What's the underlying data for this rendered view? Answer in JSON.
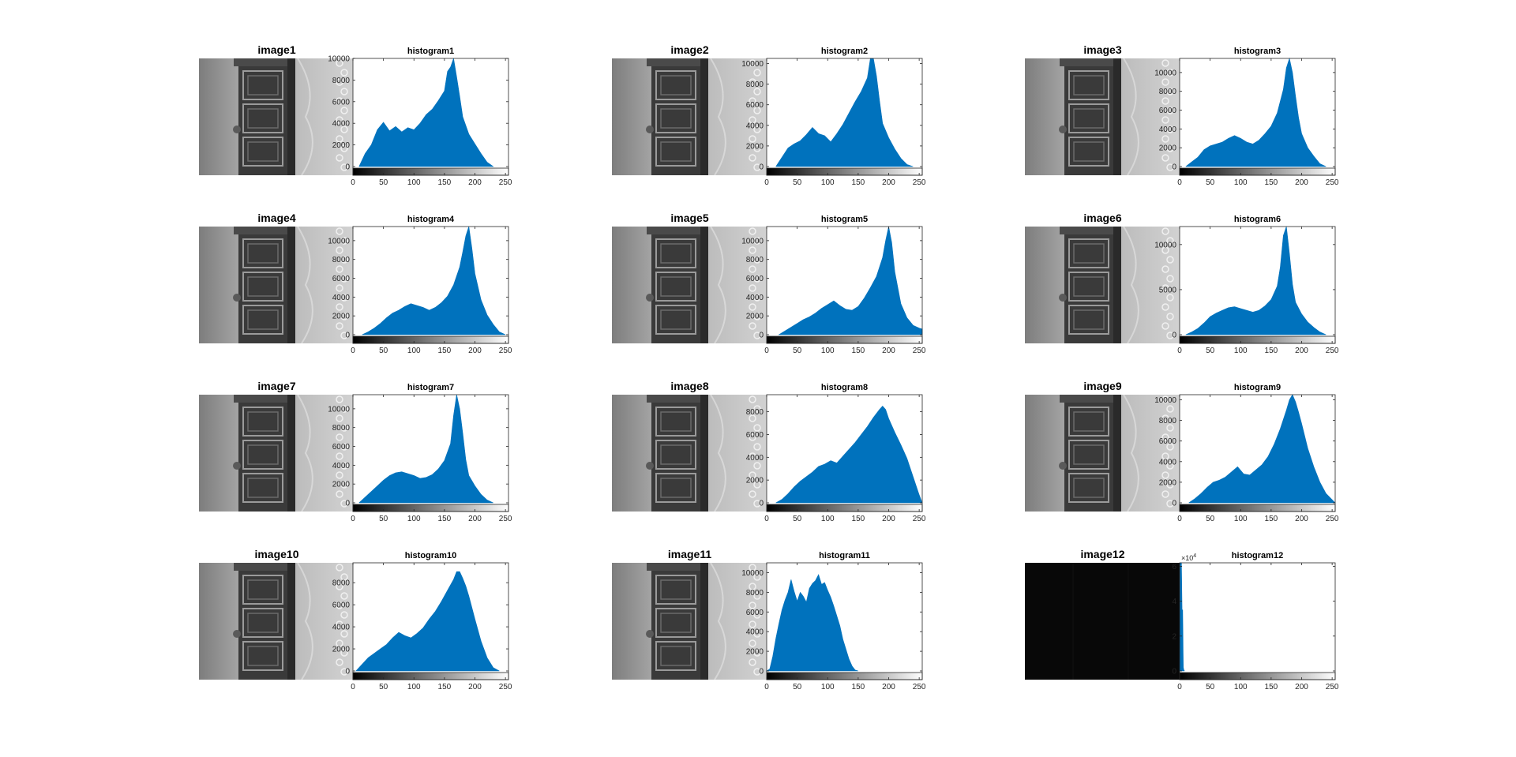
{
  "figure": {
    "panels": [
      {
        "image_title": "image1",
        "hist_title": "histogram1",
        "dark": false
      },
      {
        "image_title": "image2",
        "hist_title": "histogram2",
        "dark": false
      },
      {
        "image_title": "image3",
        "hist_title": "histogram3",
        "dark": false
      },
      {
        "image_title": "image4",
        "hist_title": "histogram4",
        "dark": false
      },
      {
        "image_title": "image5",
        "hist_title": "histogram5",
        "dark": false
      },
      {
        "image_title": "image6",
        "hist_title": "histogram6",
        "dark": false
      },
      {
        "image_title": "image7",
        "hist_title": "histogram7",
        "dark": false
      },
      {
        "image_title": "image8",
        "hist_title": "histogram8",
        "dark": false
      },
      {
        "image_title": "image9",
        "hist_title": "histogram9",
        "dark": false
      },
      {
        "image_title": "image10",
        "hist_title": "histogram10",
        "dark": false
      },
      {
        "image_title": "image11",
        "hist_title": "histogram11",
        "dark": false
      },
      {
        "image_title": "image12",
        "hist_title": "histogram12",
        "dark": true
      }
    ]
  },
  "colors": {
    "bar": "#0072BD",
    "axis": "#262626",
    "background": "#ffffff"
  },
  "chart_data": [
    {
      "type": "area",
      "title": "histogram1",
      "xlim": [
        0,
        255
      ],
      "ylim": [
        0,
        10000
      ],
      "xticks": [
        0,
        50,
        100,
        150,
        200,
        250
      ],
      "yticks": [
        0,
        2000,
        4000,
        6000,
        8000,
        10000
      ],
      "ytick_labels": [
        "0",
        "2000",
        "4000",
        "6000",
        "8000",
        "10000"
      ],
      "x": [
        10,
        20,
        30,
        40,
        50,
        60,
        70,
        80,
        90,
        100,
        110,
        120,
        130,
        140,
        150,
        155,
        160,
        165,
        170,
        175,
        180,
        190,
        200,
        210,
        220,
        230
      ],
      "values": [
        0,
        1200,
        2000,
        3400,
        4100,
        3300,
        3700,
        3200,
        3600,
        3400,
        4000,
        4800,
        5300,
        6100,
        7000,
        8800,
        9200,
        10000,
        8300,
        6500,
        4600,
        3000,
        2100,
        1200,
        400,
        0
      ]
    },
    {
      "type": "area",
      "title": "histogram2",
      "xlim": [
        0,
        255
      ],
      "ylim": [
        0,
        10500
      ],
      "xticks": [
        0,
        50,
        100,
        150,
        200,
        250
      ],
      "yticks": [
        0,
        2000,
        4000,
        6000,
        8000,
        10000
      ],
      "ytick_labels": [
        "0",
        "2000",
        "4000",
        "6000",
        "8000",
        "10000"
      ],
      "x": [
        15,
        25,
        35,
        45,
        55,
        65,
        75,
        85,
        95,
        105,
        115,
        125,
        135,
        145,
        155,
        165,
        170,
        175,
        180,
        185,
        190,
        200,
        210,
        220,
        230,
        240
      ],
      "values": [
        0,
        900,
        1800,
        2200,
        2500,
        3100,
        3800,
        3200,
        3000,
        2400,
        3200,
        4100,
        5200,
        6300,
        7300,
        8600,
        10500,
        10500,
        8800,
        6400,
        4200,
        2800,
        1700,
        800,
        200,
        0
      ]
    },
    {
      "type": "area",
      "title": "histogram3",
      "xlim": [
        0,
        255
      ],
      "ylim": [
        0,
        11500
      ],
      "xticks": [
        0,
        50,
        100,
        150,
        200,
        250
      ],
      "yticks": [
        0,
        2000,
        4000,
        6000,
        8000,
        10000
      ],
      "ytick_labels": [
        "0",
        "2000",
        "4000",
        "6000",
        "8000",
        "10000"
      ],
      "x": [
        10,
        20,
        30,
        40,
        50,
        60,
        70,
        80,
        90,
        100,
        110,
        120,
        130,
        140,
        150,
        160,
        170,
        175,
        180,
        185,
        190,
        195,
        200,
        210,
        220,
        230,
        240
      ],
      "values": [
        0,
        500,
        1000,
        1800,
        2200,
        2400,
        2600,
        3000,
        3300,
        3000,
        2600,
        2400,
        2800,
        3500,
        4300,
        5700,
        8200,
        10500,
        11500,
        10000,
        7500,
        5200,
        3500,
        2000,
        1100,
        300,
        0
      ]
    },
    {
      "type": "area",
      "title": "histogram4",
      "xlim": [
        0,
        255
      ],
      "ylim": [
        0,
        11500
      ],
      "xticks": [
        0,
        50,
        100,
        150,
        200,
        250
      ],
      "yticks": [
        0,
        2000,
        4000,
        6000,
        8000,
        10000
      ],
      "ytick_labels": [
        "0",
        "2000",
        "4000",
        "6000",
        "8000",
        "10000"
      ],
      "x": [
        15,
        25,
        35,
        45,
        55,
        65,
        75,
        85,
        95,
        105,
        115,
        125,
        135,
        145,
        155,
        165,
        175,
        180,
        185,
        190,
        195,
        200,
        210,
        220,
        230,
        240,
        250
      ],
      "values": [
        0,
        300,
        700,
        1200,
        1800,
        2300,
        2600,
        3000,
        3300,
        3100,
        2900,
        2600,
        2900,
        3400,
        4100,
        5300,
        7200,
        8800,
        10500,
        11500,
        9200,
        6500,
        3700,
        2100,
        1100,
        300,
        0
      ]
    },
    {
      "type": "area",
      "title": "histogram5",
      "xlim": [
        0,
        255
      ],
      "ylim": [
        0,
        11500
      ],
      "xticks": [
        0,
        50,
        100,
        150,
        200,
        250
      ],
      "yticks": [
        0,
        2000,
        4000,
        6000,
        8000,
        10000
      ],
      "ytick_labels": [
        "0",
        "2000",
        "4000",
        "6000",
        "8000",
        "10000"
      ],
      "x": [
        20,
        30,
        40,
        50,
        60,
        70,
        80,
        90,
        100,
        110,
        120,
        130,
        140,
        150,
        160,
        170,
        180,
        190,
        195,
        200,
        205,
        210,
        220,
        230,
        240,
        250,
        255
      ],
      "values": [
        0,
        400,
        800,
        1200,
        1600,
        1900,
        2300,
        2800,
        3200,
        3600,
        3100,
        2700,
        2600,
        3000,
        3900,
        5000,
        6200,
        8200,
        10000,
        11500,
        9800,
        6700,
        3300,
        1800,
        1000,
        700,
        600
      ]
    },
    {
      "type": "area",
      "title": "histogram6",
      "xlim": [
        0,
        255
      ],
      "ylim": [
        0,
        12000
      ],
      "xticks": [
        0,
        50,
        100,
        150,
        200,
        250
      ],
      "yticks": [
        0,
        5000,
        10000
      ],
      "ytick_labels": [
        "0",
        "5000",
        "10000"
      ],
      "x": [
        10,
        20,
        30,
        40,
        50,
        60,
        70,
        80,
        90,
        100,
        110,
        120,
        130,
        140,
        150,
        160,
        165,
        170,
        175,
        180,
        185,
        190,
        200,
        210,
        220,
        230,
        240
      ],
      "values": [
        0,
        300,
        700,
        1300,
        2000,
        2400,
        2700,
        3000,
        3100,
        2900,
        2700,
        2500,
        2700,
        3200,
        3900,
        5400,
        7500,
        11000,
        12000,
        9000,
        5600,
        3600,
        2300,
        1400,
        800,
        300,
        0
      ]
    },
    {
      "type": "area",
      "title": "histogram7",
      "xlim": [
        0,
        255
      ],
      "ylim": [
        0,
        11500
      ],
      "xticks": [
        0,
        50,
        100,
        150,
        200,
        250
      ],
      "yticks": [
        0,
        2000,
        4000,
        6000,
        8000,
        10000
      ],
      "ytick_labels": [
        "0",
        "2000",
        "4000",
        "6000",
        "8000",
        "10000"
      ],
      "x": [
        10,
        20,
        30,
        40,
        50,
        60,
        70,
        80,
        90,
        100,
        110,
        120,
        130,
        140,
        150,
        160,
        165,
        170,
        175,
        180,
        185,
        190,
        200,
        210,
        220,
        230
      ],
      "values": [
        0,
        600,
        1200,
        1800,
        2400,
        2900,
        3200,
        3300,
        3100,
        2900,
        2600,
        2700,
        3000,
        3600,
        4500,
        6300,
        9300,
        11500,
        10000,
        7400,
        4600,
        2900,
        1800,
        900,
        300,
        0
      ]
    },
    {
      "type": "area",
      "title": "histogram8",
      "xlim": [
        0,
        255
      ],
      "ylim": [
        0,
        9500
      ],
      "xticks": [
        0,
        50,
        100,
        150,
        200,
        250
      ],
      "yticks": [
        0,
        2000,
        4000,
        6000,
        8000
      ],
      "ytick_labels": [
        "0",
        "2000",
        "4000",
        "6000",
        "8000"
      ],
      "x": [
        15,
        25,
        35,
        45,
        55,
        65,
        75,
        85,
        95,
        105,
        115,
        125,
        135,
        145,
        155,
        165,
        175,
        185,
        190,
        195,
        200,
        210,
        220,
        230,
        240,
        250,
        255
      ],
      "values": [
        0,
        300,
        800,
        1400,
        1900,
        2300,
        2700,
        3200,
        3400,
        3700,
        3500,
        4100,
        4700,
        5300,
        6000,
        6700,
        7500,
        8200,
        8500,
        8200,
        7400,
        6200,
        5100,
        3900,
        2300,
        700,
        0
      ]
    },
    {
      "type": "area",
      "title": "histogram9",
      "xlim": [
        0,
        255
      ],
      "ylim": [
        0,
        10500
      ],
      "xticks": [
        0,
        50,
        100,
        150,
        200,
        250
      ],
      "yticks": [
        0,
        2000,
        4000,
        6000,
        8000,
        10000
      ],
      "ytick_labels": [
        "0",
        "2000",
        "4000",
        "6000",
        "8000",
        "10000"
      ],
      "x": [
        15,
        25,
        35,
        45,
        55,
        65,
        75,
        85,
        95,
        105,
        115,
        125,
        135,
        145,
        155,
        165,
        175,
        180,
        185,
        190,
        195,
        200,
        210,
        220,
        230,
        240,
        250,
        255
      ],
      "values": [
        0,
        400,
        900,
        1500,
        2000,
        2200,
        2500,
        3000,
        3500,
        2800,
        2700,
        3200,
        3700,
        4500,
        5700,
        7200,
        9000,
        10000,
        10500,
        9800,
        8800,
        7700,
        5300,
        3500,
        2000,
        900,
        300,
        0
      ]
    },
    {
      "type": "area",
      "title": "histogram10",
      "xlim": [
        0,
        255
      ],
      "ylim": [
        0,
        9800
      ],
      "xticks": [
        0,
        50,
        100,
        150,
        200,
        250
      ],
      "yticks": [
        0,
        2000,
        4000,
        6000,
        8000
      ],
      "ytick_labels": [
        "0",
        "2000",
        "4000",
        "6000",
        "8000"
      ],
      "x": [
        5,
        15,
        25,
        35,
        45,
        55,
        65,
        75,
        85,
        95,
        105,
        115,
        125,
        135,
        145,
        155,
        165,
        170,
        175,
        180,
        185,
        190,
        200,
        210,
        220,
        230,
        240
      ],
      "values": [
        0,
        600,
        1200,
        1600,
        2000,
        2400,
        3000,
        3500,
        3200,
        3000,
        3400,
        3900,
        4700,
        5400,
        6300,
        7300,
        8300,
        9000,
        9000,
        8400,
        7700,
        6800,
        4700,
        2700,
        1200,
        300,
        0
      ]
    },
    {
      "type": "area",
      "title": "histogram11",
      "xlim": [
        0,
        255
      ],
      "ylim": [
        0,
        11000
      ],
      "xticks": [
        0,
        50,
        100,
        150,
        200,
        250
      ],
      "yticks": [
        0,
        2000,
        4000,
        6000,
        8000,
        10000
      ],
      "ytick_labels": [
        "0",
        "2000",
        "4000",
        "6000",
        "8000",
        "10000"
      ],
      "x": [
        0,
        5,
        10,
        15,
        20,
        25,
        30,
        35,
        40,
        45,
        50,
        55,
        60,
        65,
        70,
        75,
        80,
        85,
        90,
        95,
        100,
        105,
        110,
        115,
        120,
        125,
        130,
        135,
        140,
        145,
        150
      ],
      "values": [
        0,
        200,
        1500,
        3300,
        4800,
        6200,
        7200,
        8000,
        9300,
        8100,
        7100,
        8000,
        7600,
        7000,
        8400,
        8900,
        9200,
        9800,
        8800,
        9000,
        8200,
        7500,
        6600,
        5600,
        4600,
        3200,
        2200,
        1200,
        500,
        100,
        0
      ]
    },
    {
      "type": "area",
      "title": "histogram12",
      "xlim": [
        0,
        255
      ],
      "ylim": [
        0,
        62000
      ],
      "xticks": [
        0,
        50,
        100,
        150,
        200,
        250
      ],
      "yticks": [
        0,
        20000,
        40000,
        60000
      ],
      "ytick_labels": [
        "0",
        "2",
        "4",
        "6"
      ],
      "y_exponent_label": "10",
      "y_exponent": "4",
      "x": [
        0,
        1,
        2,
        3,
        4,
        5,
        6,
        7,
        8
      ],
      "values": [
        0,
        62000,
        62000,
        62000,
        35000,
        35000,
        2000,
        500,
        0
      ]
    }
  ]
}
